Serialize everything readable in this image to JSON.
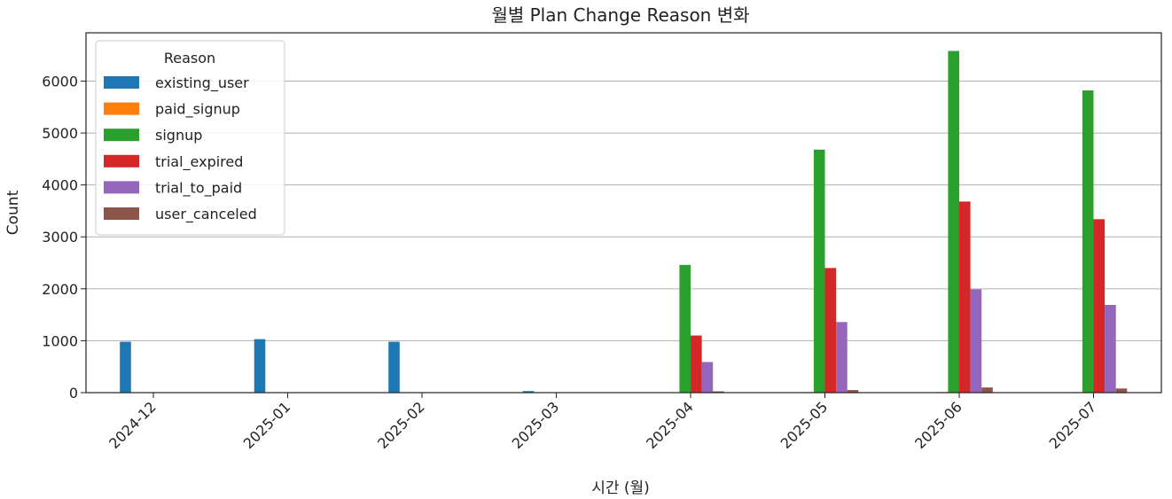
{
  "chart_data": {
    "type": "bar",
    "title": "월별 Plan Change Reason 변화",
    "xlabel": "시간 (월)",
    "ylabel": "Count",
    "categories": [
      "2024-12",
      "2025-01",
      "2025-02",
      "2025-03",
      "2025-04",
      "2025-05",
      "2025-06",
      "2025-07"
    ],
    "yticks": [
      0,
      1000,
      2000,
      3000,
      4000,
      5000,
      6000
    ],
    "ylim": [
      0,
      6930
    ],
    "grid": "horizontal",
    "legend": {
      "title": "Reason",
      "placement": "upper-left"
    },
    "series": [
      {
        "name": "existing_user",
        "color": "#1f77b4",
        "values": [
          980,
          1030,
          980,
          30,
          0,
          0,
          0,
          0
        ]
      },
      {
        "name": "paid_signup",
        "color": "#ff7f0e",
        "values": [
          0,
          0,
          0,
          0,
          5,
          10,
          12,
          10
        ]
      },
      {
        "name": "signup",
        "color": "#2ca02c",
        "values": [
          0,
          0,
          0,
          0,
          2460,
          4680,
          6580,
          5820
        ]
      },
      {
        "name": "trial_expired",
        "color": "#d62728",
        "values": [
          0,
          0,
          0,
          0,
          1100,
          2400,
          3680,
          3340
        ]
      },
      {
        "name": "trial_to_paid",
        "color": "#9467bd",
        "values": [
          0,
          0,
          0,
          0,
          590,
          1360,
          1990,
          1690
        ]
      },
      {
        "name": "user_canceled",
        "color": "#8c564b",
        "values": [
          0,
          0,
          0,
          0,
          25,
          50,
          100,
          80
        ]
      }
    ]
  }
}
